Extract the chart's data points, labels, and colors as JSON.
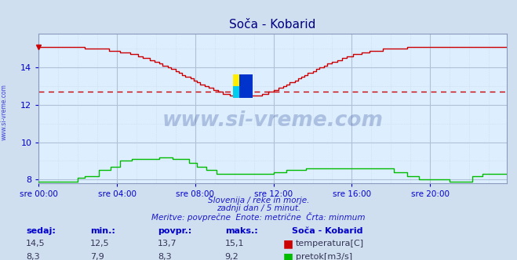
{
  "title": "Soča - Kobarid",
  "bg_color": "#d0dff0",
  "plot_bg_color": "#ddeeff",
  "grid_minor_color": "#c8d8e8",
  "grid_major_color": "#b0c0d8",
  "xlabel_color": "#0000cc",
  "ylabel_color": "#0000cc",
  "temp_color": "#cc0000",
  "flow_color": "#00bb00",
  "dashed_line_color": "#cc0000",
  "dashed_line_y": 12.7,
  "ylim": [
    7.8,
    15.8
  ],
  "yticks": [
    8,
    10,
    12,
    14
  ],
  "xtick_labels": [
    "sre 00:00",
    "sre 04:00",
    "sre 08:00",
    "sre 12:00",
    "sre 16:00",
    "sre 20:00"
  ],
  "xtick_positions": [
    0,
    48,
    96,
    144,
    192,
    240
  ],
  "n_points": 288,
  "subtitle1": "Slovenija / reke in morje.",
  "subtitle2": "zadnji dan / 5 minut.",
  "subtitle3": "Meritve: povprečne  Enote: metrične  Črta: minmum",
  "legend_title": "Soča - Kobarid",
  "legend_temp": "temperatura[C]",
  "legend_flow": "pretok[m3/s]",
  "stats_headers": [
    "sedaj:",
    "min.:",
    "povpr.:",
    "maks.:"
  ],
  "stats_temp": [
    "14,5",
    "12,5",
    "13,7",
    "15,1"
  ],
  "stats_flow": [
    "8,3",
    "7,9",
    "8,3",
    "9,2"
  ],
  "watermark": "www.si-vreme.com",
  "watermark_color": "#1a3a8a",
  "watermark_alpha": 0.25,
  "logo_colors": [
    "#ffee00",
    "#00ccee",
    "#0033cc"
  ]
}
